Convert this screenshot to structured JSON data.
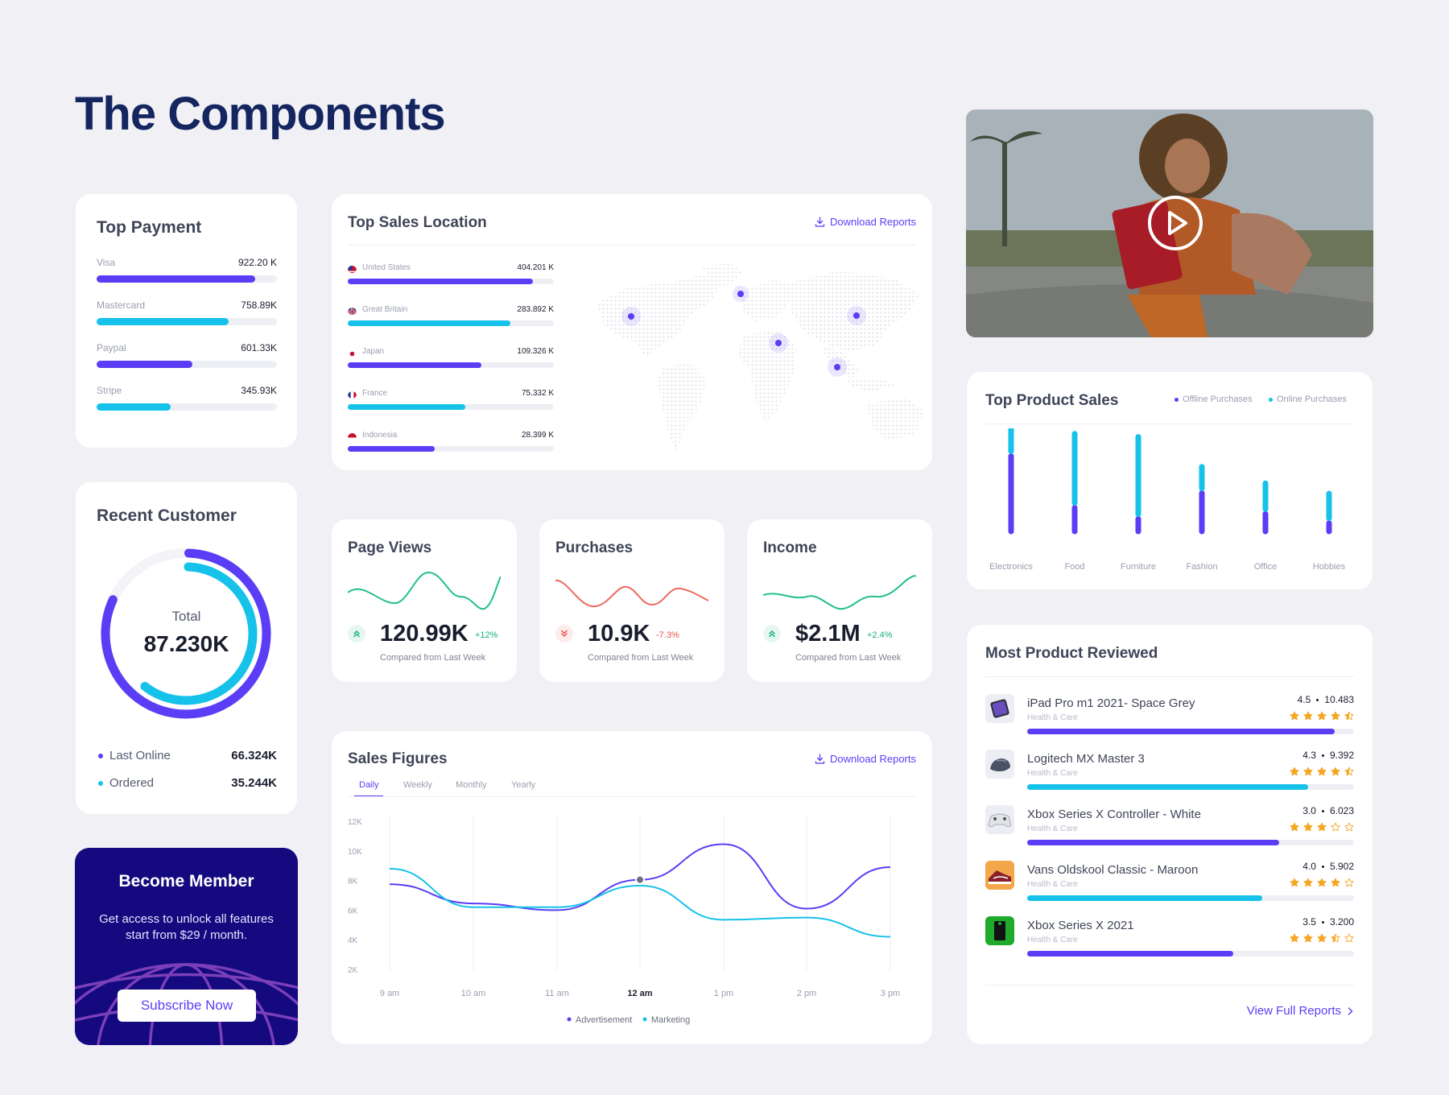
{
  "page": {
    "title": "The Components"
  },
  "colors": {
    "accent_purple": "#5b3df5",
    "accent_cyan": "#16c2ea",
    "title_navy": "#14255f",
    "member_bg": "#14097e",
    "star": "#f5a623",
    "up_green": "#16b07a",
    "down_red": "#e8504a"
  },
  "top_payment": {
    "title": "Top Payment",
    "items": [
      {
        "label": "Visa",
        "value": "922.20 K",
        "fill": 0.88,
        "color": "purple"
      },
      {
        "label": "Mastercard",
        "value": "758.89K",
        "fill": 0.73,
        "color": "cyan"
      },
      {
        "label": "Paypal",
        "value": "601.33K",
        "fill": 0.53,
        "color": "purple"
      },
      {
        "label": "Stripe",
        "value": "345.93K",
        "fill": 0.41,
        "color": "cyan"
      }
    ]
  },
  "top_sales_location": {
    "title": "Top Sales Location",
    "download_label": "Download Reports",
    "items": [
      {
        "country": "United States",
        "value": "404.201 K",
        "fill": 0.9,
        "color": "purple",
        "flag": "us-flag-icon"
      },
      {
        "country": "Great Britain",
        "value": "283.892 K",
        "fill": 0.79,
        "color": "cyan",
        "flag": "gb-flag-icon"
      },
      {
        "country": "Japan",
        "value": "109.326 K",
        "fill": 0.65,
        "color": "purple",
        "flag": "jp-flag-icon"
      },
      {
        "country": "France",
        "value": "75.332 K",
        "fill": 0.57,
        "color": "cyan",
        "flag": "fr-flag-icon"
      },
      {
        "country": "Indonesia",
        "value": "28.399 K",
        "fill": 0.42,
        "color": "purple",
        "flag": "id-flag-icon"
      }
    ]
  },
  "video": {
    "play_icon": "play-icon"
  },
  "recent_customer": {
    "title": "Recent Customer",
    "total_label": "Total",
    "total_value": "87.230K",
    "legend": [
      {
        "label": "Last Online",
        "value": "66.324K",
        "color": "purple"
      },
      {
        "label": "Ordered",
        "value": "35.244K",
        "color": "cyan"
      }
    ]
  },
  "stats": [
    {
      "title": "Page Views",
      "value": "120.99K",
      "change": "+12%",
      "direction": "up",
      "note": "Compared from Last Week",
      "color": "#22c08a"
    },
    {
      "title": "Purchases",
      "value": "10.9K",
      "change": "-7.3%",
      "direction": "down",
      "note": "Compared from Last Week",
      "color": "#ec6a5e"
    },
    {
      "title": "Income",
      "value": "$2.1M",
      "change": "+2.4%",
      "direction": "up",
      "note": "Compared from Last Week",
      "color": "#22c08a"
    }
  ],
  "top_product_sales": {
    "title": "Top Product Sales",
    "legend": [
      "Offline Purchases",
      "Online Purchases"
    ]
  },
  "become_member": {
    "title": "Become Member",
    "text": "Get access to unlock all features start from $29 / month.",
    "button": "Subscribe Now"
  },
  "sales_figures": {
    "title": "Sales Figures",
    "download_label": "Download Reports",
    "tabs": [
      "Daily",
      "Weekly",
      "Monthly",
      "Yearly"
    ],
    "active_tab": "Daily"
  },
  "most_reviewed": {
    "title": "Most Product Reviewed",
    "items": [
      {
        "name": "iPad Pro m1 2021- Space Grey",
        "category": "Health & Care",
        "rating": "4.5",
        "reviews": "10.483",
        "stars": 4.5,
        "fill": 0.94,
        "color": "purple",
        "thumb": "ipad-thumbnail"
      },
      {
        "name": "Logitech MX Master 3",
        "category": "Health & Care",
        "rating": "4.3",
        "reviews": "9.392",
        "stars": 4.5,
        "fill": 0.86,
        "color": "cyan",
        "thumb": "mouse-thumbnail"
      },
      {
        "name": "Xbox Series X Controller - White",
        "category": "Health & Care",
        "rating": "3.0",
        "reviews": "6.023",
        "stars": 3,
        "fill": 0.77,
        "color": "purple",
        "thumb": "controller-thumbnail"
      },
      {
        "name": "Vans Oldskool Classic - Maroon",
        "category": "Health & Care",
        "rating": "4.0",
        "reviews": "5.902",
        "stars": 4,
        "fill": 0.72,
        "color": "cyan",
        "thumb": "shoe-thumbnail"
      },
      {
        "name": "Xbox Series X 2021",
        "category": "Health & Care",
        "rating": "3.5",
        "reviews": "3.200",
        "stars": 3.5,
        "fill": 0.63,
        "color": "purple",
        "thumb": "xbox-thumbnail"
      }
    ],
    "footer_link": "View Full Reports"
  },
  "chart_data": [
    {
      "type": "bar",
      "title": "Top Product Sales",
      "categories": [
        "Electronics",
        "Food",
        "Furniture",
        "Fashion",
        "Office",
        "Hobbies"
      ],
      "series": [
        {
          "name": "Offline Purchases",
          "values": [
            73,
            23,
            12,
            37,
            17,
            8
          ]
        },
        {
          "name": "Online Purchases",
          "values": [
            24,
            67,
            75,
            21,
            25,
            24
          ]
        }
      ]
    },
    {
      "type": "line",
      "title": "Sales Figures",
      "x": [
        "9 am",
        "10 am",
        "11 am",
        "12 am",
        "1 pm",
        "2 pm",
        "3 pm"
      ],
      "x_highlight": "12 am",
      "y_ticks": [
        "12K",
        "10K",
        "8K",
        "6K",
        "4K",
        "2K"
      ],
      "ylim": [
        2000,
        12000
      ],
      "series": [
        {
          "name": "Advertisement",
          "values": [
            7750,
            6450,
            6000,
            8050,
            10450,
            6100,
            8900
          ],
          "highlight_point": {
            "x": "12 am",
            "y": 8050
          }
        },
        {
          "name": "Marketing",
          "values": [
            8800,
            6200,
            6200,
            7650,
            5350,
            5500,
            4200
          ]
        }
      ],
      "legend": [
        "Advertisement",
        "Marketing"
      ]
    },
    {
      "type": "pie",
      "title": "Recent Customer",
      "series": [
        {
          "name": "Last Online",
          "values": [
            66.324
          ]
        },
        {
          "name": "Ordered",
          "values": [
            35.244
          ]
        }
      ]
    }
  ]
}
